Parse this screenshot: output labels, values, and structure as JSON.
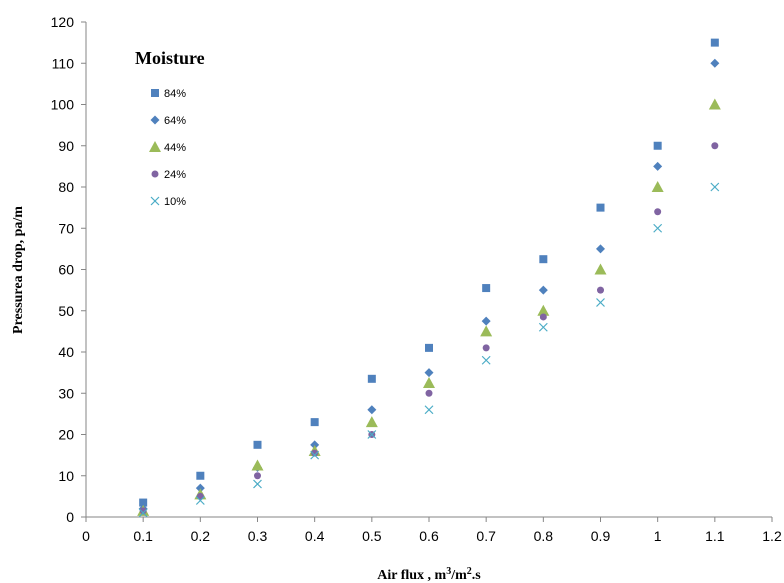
{
  "chart_data": {
    "type": "scatter",
    "title": "",
    "xlabel": "Air flux , m",
    "xlabel_sup1": "3",
    "xlabel_mid": "/m",
    "xlabel_sup2": "2",
    "xlabel_end": ".s",
    "ylabel": "Pressurea drop, pa/m",
    "xlim": [
      0,
      1.2
    ],
    "ylim": [
      0,
      120
    ],
    "x_ticks": [
      "0",
      "0.1",
      "0.2",
      "0.3",
      "0.4",
      "0.5",
      "0.6",
      "0.7",
      "0.8",
      "0.9",
      "1",
      "1.1",
      "1.2"
    ],
    "y_ticks": [
      "0",
      "10",
      "20",
      "30",
      "40",
      "50",
      "60",
      "70",
      "80",
      "90",
      "100",
      "110",
      "120"
    ],
    "grid": false,
    "legend": {
      "title": "Moisture",
      "placement": "top-left"
    },
    "x": [
      0.1,
      0.2,
      0.3,
      0.4,
      0.5,
      0.6,
      0.7,
      0.8,
      0.9,
      1.0,
      1.1
    ],
    "series": [
      {
        "name": "84%",
        "marker": "square",
        "color": "#4F81BD",
        "values": [
          3.5,
          10,
          17.5,
          23,
          33.5,
          41,
          55.5,
          62.5,
          75,
          90,
          115
        ]
      },
      {
        "name": "64%",
        "marker": "diamond",
        "color": "#4F81BD",
        "values": [
          2,
          7,
          12,
          17.5,
          26,
          35,
          47.5,
          55,
          65,
          85,
          110
        ]
      },
      {
        "name": "44%",
        "marker": "triangle",
        "color": "#9BBB59",
        "values": [
          1.5,
          5.5,
          12.5,
          16,
          23,
          32.5,
          45,
          50,
          60,
          80,
          100
        ]
      },
      {
        "name": "24%",
        "marker": "circle",
        "color": "#8064A2",
        "values": [
          1.5,
          5,
          10,
          15.5,
          20,
          30,
          41,
          48.5,
          55,
          74,
          90
        ]
      },
      {
        "name": "10%",
        "marker": "x",
        "color": "#4BACC6",
        "values": [
          1,
          4,
          8,
          15,
          20,
          26,
          38,
          46,
          52,
          70,
          80
        ]
      }
    ]
  }
}
